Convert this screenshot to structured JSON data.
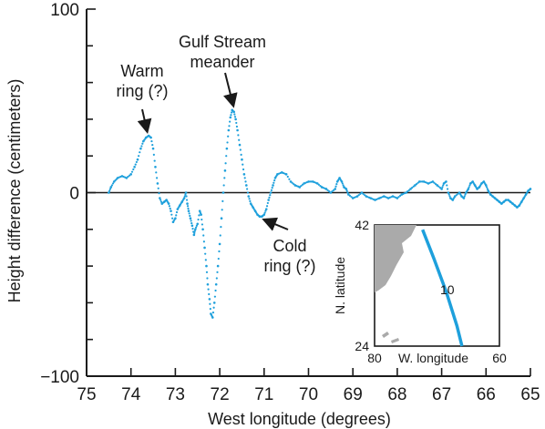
{
  "chart_data": {
    "type": "scatter",
    "title": "",
    "xlabel": "West longitude (degrees)",
    "ylabel": "Height difference (centimeters)",
    "xlim": [
      75,
      65
    ],
    "ylim": [
      -100,
      100
    ],
    "x_reversed": true,
    "x_ticks": [
      "75",
      "74",
      "73",
      "72",
      "71",
      "70",
      "69",
      "68",
      "67",
      "66",
      "65"
    ],
    "y_ticks": [
      "100",
      "0",
      "−100"
    ],
    "zero_line": true,
    "series_color": "#1ea0dc",
    "series": [
      {
        "values": [
          [
            74.5,
            0
          ],
          [
            74.45,
            3
          ],
          [
            74.38,
            6
          ],
          [
            74.3,
            8
          ],
          [
            74.2,
            9
          ],
          [
            74.1,
            8
          ],
          [
            74.0,
            10
          ],
          [
            73.92,
            14
          ],
          [
            73.85,
            18
          ],
          [
            73.78,
            24
          ],
          [
            73.72,
            28
          ],
          [
            73.66,
            30
          ],
          [
            73.6,
            31
          ],
          [
            73.55,
            30
          ],
          [
            73.5,
            24
          ],
          [
            73.45,
            14
          ],
          [
            73.4,
            5
          ],
          [
            73.35,
            -3
          ],
          [
            73.3,
            -6
          ],
          [
            73.25,
            -5
          ],
          [
            73.2,
            -4
          ],
          [
            73.15,
            -6
          ],
          [
            73.1,
            -10
          ],
          [
            73.05,
            -16
          ],
          [
            73.0,
            -14
          ],
          [
            72.95,
            -9
          ],
          [
            72.9,
            -7
          ],
          [
            72.85,
            -5
          ],
          [
            72.8,
            -3
          ],
          [
            72.76,
            0
          ],
          [
            72.73,
            -6
          ],
          [
            72.7,
            -10
          ],
          [
            72.66,
            -14
          ],
          [
            72.62,
            -18
          ],
          [
            72.58,
            -23
          ],
          [
            72.55,
            -20
          ],
          [
            72.5,
            -17
          ],
          [
            72.45,
            -10
          ],
          [
            72.42,
            -12
          ],
          [
            72.38,
            -20
          ],
          [
            72.34,
            -30
          ],
          [
            72.3,
            -40
          ],
          [
            72.27,
            -50
          ],
          [
            72.23,
            -58
          ],
          [
            72.2,
            -66
          ],
          [
            72.16,
            -68
          ],
          [
            72.12,
            -60
          ],
          [
            72.08,
            -50
          ],
          [
            72.04,
            -40
          ],
          [
            72.0,
            -28
          ],
          [
            71.96,
            -14
          ],
          [
            71.92,
            0
          ],
          [
            71.88,
            12
          ],
          [
            71.84,
            24
          ],
          [
            71.8,
            34
          ],
          [
            71.76,
            41
          ],
          [
            71.72,
            45
          ],
          [
            71.68,
            44
          ],
          [
            71.64,
            40
          ],
          [
            71.6,
            34
          ],
          [
            71.55,
            26
          ],
          [
            71.5,
            18
          ],
          [
            71.45,
            10
          ],
          [
            71.4,
            4
          ],
          [
            71.35,
            -2
          ],
          [
            71.3,
            -6
          ],
          [
            71.25,
            -8
          ],
          [
            71.2,
            -10
          ],
          [
            71.15,
            -12
          ],
          [
            71.1,
            -13
          ],
          [
            71.05,
            -13
          ],
          [
            71.0,
            -12
          ],
          [
            70.95,
            -9
          ],
          [
            70.9,
            -4
          ],
          [
            70.85,
            0
          ],
          [
            70.8,
            4
          ],
          [
            70.75,
            8
          ],
          [
            70.7,
            10
          ],
          [
            70.6,
            11
          ],
          [
            70.5,
            10
          ],
          [
            70.4,
            6
          ],
          [
            70.3,
            4
          ],
          [
            70.2,
            3
          ],
          [
            70.1,
            5
          ],
          [
            70.0,
            6
          ],
          [
            69.9,
            6
          ],
          [
            69.8,
            5
          ],
          [
            69.7,
            3
          ],
          [
            69.6,
            2
          ],
          [
            69.5,
            0
          ],
          [
            69.4,
            2
          ],
          [
            69.35,
            6
          ],
          [
            69.3,
            8
          ],
          [
            69.25,
            6
          ],
          [
            69.2,
            3
          ],
          [
            69.15,
            2
          ],
          [
            69.1,
            -1
          ],
          [
            69.0,
            -3
          ],
          [
            68.9,
            -2
          ],
          [
            68.8,
            0
          ],
          [
            68.7,
            -2
          ],
          [
            68.6,
            -3
          ],
          [
            68.5,
            -4
          ],
          [
            68.4,
            -3
          ],
          [
            68.3,
            -2
          ],
          [
            68.2,
            -3
          ],
          [
            68.1,
            -2
          ],
          [
            68.0,
            -3
          ],
          [
            67.9,
            -1
          ],
          [
            67.8,
            0
          ],
          [
            67.7,
            2
          ],
          [
            67.6,
            4
          ],
          [
            67.5,
            6
          ],
          [
            67.4,
            6
          ],
          [
            67.3,
            5
          ],
          [
            67.2,
            6
          ],
          [
            67.1,
            4
          ],
          [
            67.0,
            2
          ],
          [
            66.95,
            5
          ],
          [
            66.9,
            6
          ],
          [
            66.85,
            0
          ],
          [
            66.8,
            -3
          ],
          [
            66.75,
            -4
          ],
          [
            66.7,
            -2
          ],
          [
            66.6,
            0
          ],
          [
            66.55,
            -2
          ],
          [
            66.5,
            -3
          ],
          [
            66.45,
            0
          ],
          [
            66.4,
            2
          ],
          [
            66.35,
            5
          ],
          [
            66.3,
            6
          ],
          [
            66.25,
            4
          ],
          [
            66.2,
            2
          ],
          [
            66.15,
            3
          ],
          [
            66.1,
            5
          ],
          [
            66.05,
            6
          ],
          [
            66.0,
            4
          ],
          [
            65.95,
            1
          ],
          [
            65.9,
            -1
          ],
          [
            65.85,
            -2
          ],
          [
            65.8,
            -3
          ],
          [
            65.75,
            -4
          ],
          [
            65.7,
            -5
          ],
          [
            65.65,
            -6
          ],
          [
            65.6,
            -5
          ],
          [
            65.55,
            -4
          ],
          [
            65.5,
            -4
          ],
          [
            65.45,
            -5
          ],
          [
            65.4,
            -6
          ],
          [
            65.35,
            -7
          ],
          [
            65.3,
            -8
          ],
          [
            65.25,
            -7
          ],
          [
            65.2,
            -5
          ],
          [
            65.15,
            -3
          ],
          [
            65.1,
            -1
          ],
          [
            65.05,
            1
          ],
          [
            65.0,
            2
          ]
        ]
      }
    ],
    "annotations": [
      {
        "lines": [
          "Warm",
          "ring (?)"
        ],
        "target": [
          73.6,
          31
        ]
      },
      {
        "lines": [
          "Gulf Stream",
          "meander"
        ],
        "target": [
          71.72,
          45
        ]
      },
      {
        "lines": [
          "Cold",
          "ring (?)"
        ],
        "target": [
          71.1,
          -13
        ]
      }
    ],
    "inset": {
      "type": "map",
      "ylabel": "N. latitude",
      "xlabel": "W. longitude",
      "lat_ticks": [
        "42",
        "24"
      ],
      "lon_ticks": [
        "80",
        "60"
      ],
      "lat_range": [
        24,
        42
      ],
      "lon_range": [
        80,
        60
      ],
      "track_label": "10",
      "track_color": "#1ea0dc",
      "land_color": "#aaaaaa",
      "track": [
        [
          72.3,
          41.3
        ],
        [
          70.5,
          37.0
        ],
        [
          68.5,
          32.0
        ],
        [
          66.8,
          27.0
        ],
        [
          66.0,
          24.0
        ]
      ]
    }
  }
}
